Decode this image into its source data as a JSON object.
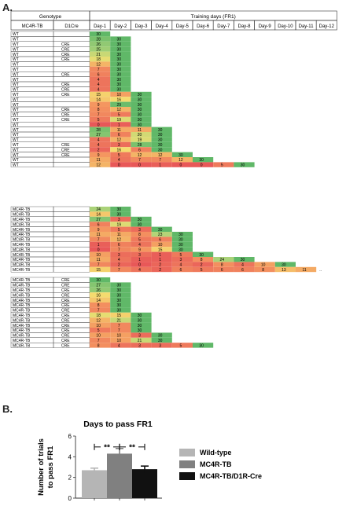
{
  "panel_a_label": "A.",
  "panel_b_label": "B.",
  "table": {
    "genotype_header": "Genotype",
    "training_header": "Training days (FR1)",
    "col_mc4r": "MC4R-TB",
    "col_d1cre": "D1Cre",
    "day_labels": [
      "Day-1",
      "Day-2",
      "Day-3",
      "Day-4",
      "Day-5",
      "Day-6",
      "Day-7",
      "Day-8",
      "Day-9",
      "Day-10",
      "Day-11",
      "Day-12"
    ],
    "ellipsis": "..",
    "groups": [
      {
        "rows": [
          {
            "g": "WT",
            "c": "",
            "v": [
              30
            ]
          },
          {
            "g": "WT",
            "c": "",
            "v": [
              28,
              30
            ]
          },
          {
            "g": "WT",
            "c": "CRE",
            "v": [
              26,
              30
            ]
          },
          {
            "g": "WT",
            "c": "CRE",
            "v": [
              25,
              30
            ]
          },
          {
            "g": "WT",
            "c": "CRE",
            "v": [
              21,
              30
            ]
          },
          {
            "g": "WT",
            "c": "CRE",
            "v": [
              18,
              30
            ]
          },
          {
            "g": "WT",
            "c": "",
            "v": [
              12,
              30
            ]
          },
          {
            "g": "WT",
            "c": "",
            "v": [
              7,
              30
            ]
          },
          {
            "g": "WT",
            "c": "CRE",
            "v": [
              6,
              30
            ]
          },
          {
            "g": "WT",
            "c": "",
            "v": [
              4,
              30
            ]
          },
          {
            "g": "WT",
            "c": "CRE",
            "v": [
              4,
              30
            ]
          },
          {
            "g": "WT",
            "c": "CRE",
            "v": [
              4,
              30
            ]
          },
          {
            "g": "WT",
            "c": "CRE",
            "v": [
              15,
              10,
              30
            ]
          },
          {
            "g": "WT",
            "c": "",
            "v": [
              14,
              16,
              30
            ]
          },
          {
            "g": "WT",
            "c": "",
            "v": [
              9,
              29,
              30
            ]
          },
          {
            "g": "WT",
            "c": "CRE",
            "v": [
              8,
              12,
              30
            ]
          },
          {
            "g": "WT",
            "c": "CRE",
            "v": [
              7,
              5,
              30
            ]
          },
          {
            "g": "WT",
            "c": "CRE",
            "v": [
              5,
              19,
              30
            ]
          },
          {
            "g": "WT",
            "c": "",
            "v": [
              0,
              1,
              30
            ]
          },
          {
            "g": "WT",
            "c": "",
            "v": [
              28,
              11,
              11,
              30
            ]
          },
          {
            "g": "WT",
            "c": "",
            "v": [
              27,
              6,
              20,
              30
            ]
          },
          {
            "g": "WT",
            "c": "",
            "v": [
              4,
              12,
              19,
              30
            ]
          },
          {
            "g": "WT",
            "c": "CRE",
            "v": [
              4,
              3,
              28,
              30
            ]
          },
          {
            "g": "WT",
            "c": "CRE",
            "v": [
              2,
              16,
              6,
              30
            ]
          },
          {
            "g": "WT",
            "c": "CRE",
            "v": [
              9,
              5,
              12,
              12,
              30
            ]
          },
          {
            "g": "WT",
            "c": "",
            "v": [
              11,
              4,
              7,
              7,
              12,
              30
            ]
          },
          {
            "g": "WT",
            "c": "",
            "v": [
              12,
              0,
              0,
              1,
              0,
              0,
              5,
              30
            ]
          }
        ]
      },
      {
        "rows": [
          {
            "g": "MC4R-TB",
            "c": "",
            "v": [
              24,
              30
            ]
          },
          {
            "g": "MC4R-TB",
            "c": "",
            "v": [
              14,
              30
            ]
          },
          {
            "g": "MC4R-TB",
            "c": "",
            "v": [
              27,
              3,
              30
            ]
          },
          {
            "g": "MC4R-TB",
            "c": "",
            "v": [
              6,
              19,
              30
            ]
          },
          {
            "g": "MC4R-TB",
            "c": "",
            "v": [
              9,
              5,
              3,
              30
            ]
          },
          {
            "g": "MC4R-TB",
            "c": "",
            "v": [
              11,
              11,
              8,
              23,
              30
            ]
          },
          {
            "g": "MC4R-TB",
            "c": "",
            "v": [
              7,
              12,
              5,
              6,
              30
            ]
          },
          {
            "g": "MC4R-TB",
            "c": "",
            "v": [
              1,
              6,
              4,
              10,
              30
            ]
          },
          {
            "g": "MC4R-TB",
            "c": "",
            "v": [
              0,
              7,
              9,
              15,
              30
            ]
          },
          {
            "g": "MC4R-TB",
            "c": "",
            "v": [
              10,
              3,
              3,
              1,
              5,
              30
            ]
          },
          {
            "g": "MC4R-TB",
            "c": "",
            "v": [
              11,
              4,
              1,
              1,
              3,
              8,
              24,
              30
            ]
          },
          {
            "g": "MC4R-TB",
            "c": "",
            "v": [
              7,
              2,
              0,
              2,
              4,
              2,
              8,
              4,
              10,
              30
            ]
          },
          {
            "g": "MC4R-TB",
            "c": "",
            "v": [
              15,
              7,
              4,
              2,
              6,
              5,
              6,
              6,
              8,
              13,
              11
            ]
          }
        ]
      },
      {
        "rows": [
          {
            "g": "MC4R-TB",
            "c": "CRE",
            "v": [
              30
            ]
          },
          {
            "g": "MC4R-TB",
            "c": "CRE",
            "v": [
              27,
              30
            ]
          },
          {
            "g": "MC4R-TB",
            "c": "CRE",
            "v": [
              26,
              30
            ]
          },
          {
            "g": "MC4R-TB",
            "c": "CRE",
            "v": [
              16,
              30
            ]
          },
          {
            "g": "MC4R-TB",
            "c": "CRE",
            "v": [
              14,
              30
            ]
          },
          {
            "g": "MC4R-TB",
            "c": "CRE",
            "v": [
              8,
              30
            ]
          },
          {
            "g": "MC4R-TB",
            "c": "CRE",
            "v": [
              7,
              30
            ]
          },
          {
            "g": "MC4R-TB",
            "c": "CRE",
            "v": [
              18,
              15,
              30
            ]
          },
          {
            "g": "MC4R-TB",
            "c": "CRE",
            "v": [
              12,
              21,
              30
            ]
          },
          {
            "g": "MC4R-TB",
            "c": "CRE",
            "v": [
              10,
              7,
              30
            ]
          },
          {
            "g": "MC4R-TB",
            "c": "CRE",
            "v": [
              5,
              7,
              30
            ]
          },
          {
            "g": "MC4R-TB",
            "c": "CRE",
            "v": [
              10,
              10,
              3,
              30
            ]
          },
          {
            "g": "MC4R-TB",
            "c": "CRE",
            "v": [
              7,
              10,
              21,
              30
            ]
          },
          {
            "g": "MC4R-TB",
            "c": "CRE",
            "v": [
              8,
              4,
              3,
              3,
              5,
              30
            ]
          }
        ]
      }
    ]
  },
  "chart_data": {
    "type": "bar",
    "title": "Days to pass FR1",
    "ylabel": "Number of trials to pass FR1",
    "ylabel_lines": [
      "Number of trials",
      "to pass FR1"
    ],
    "ylim": [
      0,
      6
    ],
    "yticks": [
      0,
      2,
      4,
      6
    ],
    "categories": [
      "Wild-type",
      "MC4R-TB",
      "MC4R-TB/D1R-Cre"
    ],
    "values": [
      2.7,
      4.3,
      2.8
    ],
    "errors": [
      0.2,
      0.5,
      0.3
    ],
    "colors": [
      "#b5b5b5",
      "#808080",
      "#111111"
    ],
    "significance": [
      {
        "from": 0,
        "to": 1,
        "label": "**"
      },
      {
        "from": 1,
        "to": 2,
        "label": "**"
      }
    ],
    "legend_position": "right"
  }
}
